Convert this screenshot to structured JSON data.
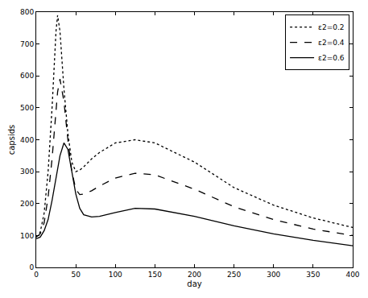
{
  "chart_data": {
    "type": "line",
    "x_label": "day",
    "y_label": "capsids",
    "x": [
      0,
      5,
      10,
      15,
      20,
      25,
      27,
      30,
      35,
      40,
      45,
      50,
      55,
      60,
      70,
      80,
      100,
      125,
      150,
      200,
      250,
      300,
      350,
      400
    ],
    "series": [
      {
        "name": "ε2=0.2",
        "color": "#000000",
        "line_style": "dotted",
        "values": [
          95,
          110,
          170,
          300,
          500,
          740,
          790,
          740,
          560,
          420,
          330,
          300,
          305,
          315,
          340,
          360,
          390,
          400,
          390,
          330,
          250,
          195,
          155,
          125
        ]
      },
      {
        "name": "ε2=0.4",
        "color": "#000000",
        "line_style": "dashed",
        "values": [
          95,
          105,
          140,
          220,
          340,
          490,
          550,
          590,
          520,
          400,
          300,
          245,
          228,
          230,
          240,
          255,
          280,
          295,
          290,
          245,
          190,
          150,
          120,
          100
        ]
      },
      {
        "name": "ε2=0.6",
        "color": "#000000",
        "line_style": "solid",
        "values": [
          90,
          95,
          115,
          150,
          210,
          280,
          310,
          350,
          390,
          370,
          300,
          230,
          185,
          165,
          158,
          160,
          172,
          185,
          183,
          160,
          130,
          105,
          85,
          68
        ]
      }
    ],
    "xlim": [
      0,
      400
    ],
    "xticks": [
      0,
      50,
      100,
      150,
      200,
      250,
      300,
      350,
      400
    ],
    "ylim": [
      0,
      800
    ],
    "yticks": [
      0,
      100,
      200,
      300,
      400,
      500,
      600,
      700,
      800
    ],
    "grid": false,
    "legend": "top-right"
  }
}
